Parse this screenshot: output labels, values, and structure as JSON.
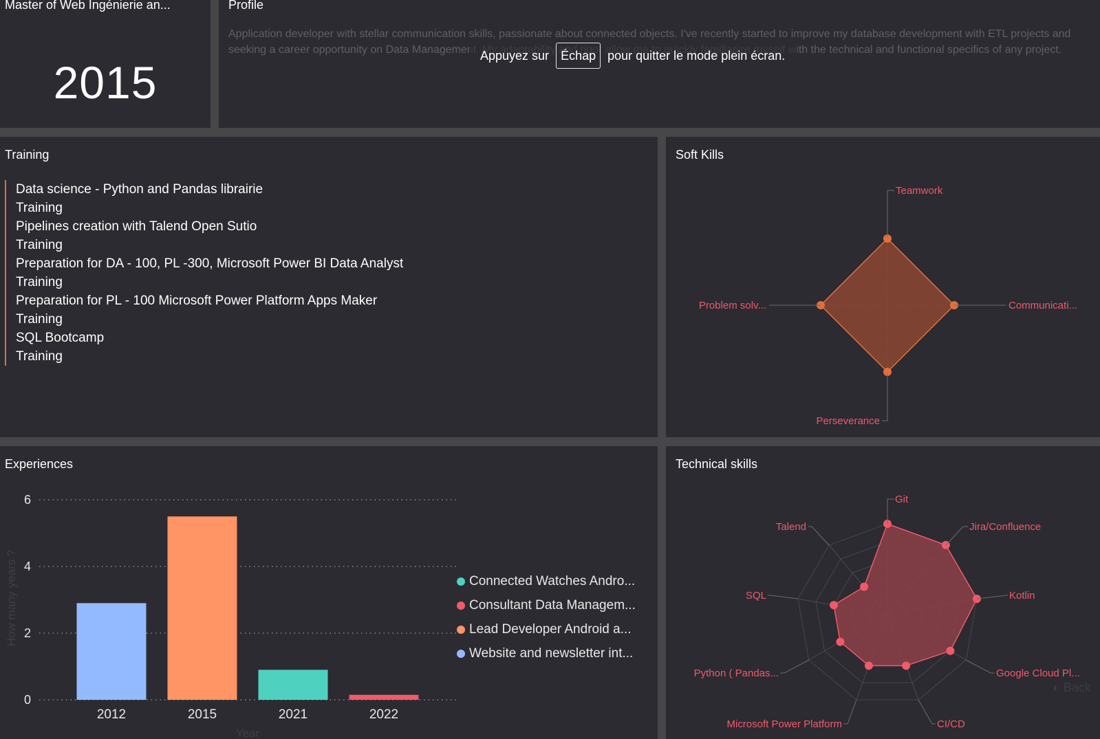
{
  "degree": {
    "title": "Master of Web Ingénierie an...",
    "year": "2015"
  },
  "profile": {
    "title": "Profile",
    "text": "Application developer with stellar communication skills, passionate about connected objects. I've recently started to improve my database development with ETL projects and seeking a career opportunity on Data Management. My adaptability and rigor allow me to quickly familiarize myself with the technical and functional specifics of any project."
  },
  "toast": {
    "before": "Appuyez sur",
    "key": "Échap",
    "after": "pour quitter le mode plein écran."
  },
  "training": {
    "title": "Training",
    "items": [
      "Data science - Python and Pandas librairie",
      "Training",
      "Pipelines creation with Talend Open Sutio",
      "Training",
      "Preparation for DA - 100, PL -300, Microsoft Power BI Data Analyst",
      "Training",
      "Preparation for PL - 100 Microsoft Power Platform Apps Maker",
      "Training",
      "SQL Bootcamp",
      "Training"
    ]
  },
  "soft_skills": {
    "title": "Soft Kills"
  },
  "experiences": {
    "title": "Experiences"
  },
  "technical": {
    "title": "Technical skills"
  },
  "back_label": "Back",
  "colors": {
    "accent": "#e2703a",
    "blue": "#93baff",
    "orange": "#ff9464",
    "teal": "#4fd1c0",
    "red": "#f05a6a",
    "soft_fill": "#8a4632",
    "tech_fill": "#8a3f48"
  },
  "chart_data": [
    {
      "type": "bar",
      "title": "Experiences",
      "xlabel": "Year",
      "ylabel": "How many years ?",
      "categories": [
        "2012",
        "2015",
        "2021",
        "2022"
      ],
      "values": [
        2.9,
        5.5,
        0.9,
        0.15
      ],
      "bar_colors": [
        "#93baff",
        "#ff9464",
        "#4fd1c0",
        "#f05a6a"
      ],
      "ylim": [
        0,
        6
      ],
      "yticks": [
        0,
        2,
        4,
        6
      ],
      "legend": [
        {
          "label": "Connected Watches Andro...",
          "color": "#4fd1c0"
        },
        {
          "label": "Consultant Data Managem...",
          "color": "#f05a6a"
        },
        {
          "label": "Lead Developer Android a...",
          "color": "#ff9464"
        },
        {
          "label": "Website and newsletter int...",
          "color": "#93baff"
        }
      ]
    },
    {
      "type": "radar",
      "title": "Soft Kills",
      "categories": [
        "Teamwork",
        "Communicati...",
        "Perseverance",
        "Problem solv..."
      ],
      "values": [
        5,
        5,
        5,
        5
      ],
      "max": 5,
      "color": "#e2703a"
    },
    {
      "type": "radar",
      "title": "Technical skills",
      "categories": [
        "Git",
        "Jira/Confluence",
        "Kotlin",
        "Google Cloud Pl...",
        "CI/CD",
        "Microsoft Power Platform",
        "Python ( Pandas...",
        "SQL",
        "Talend"
      ],
      "values": [
        5,
        5,
        5,
        4,
        3,
        3,
        3,
        3,
        2
      ],
      "max": 5,
      "color": "#f05a6a"
    }
  ]
}
